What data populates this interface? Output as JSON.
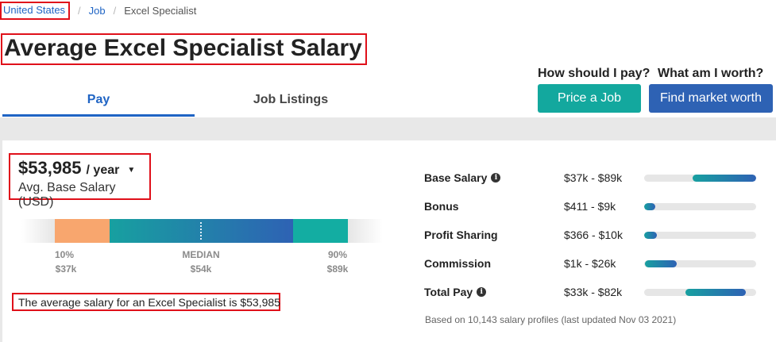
{
  "breadcrumb": {
    "items": [
      "United States",
      "Job",
      "Excel Specialist"
    ],
    "separator": "/"
  },
  "page_title": "Average Excel Specialist Salary",
  "tabs": [
    {
      "label": "Pay",
      "active": true
    },
    {
      "label": "Job Listings",
      "active": false
    }
  ],
  "cta": {
    "pay_question": "How should I pay?",
    "pay_button": "Price a Job",
    "worth_question": "What am I worth?",
    "worth_button": "Find market worth"
  },
  "salary": {
    "amount": "$53,985",
    "period": "/ year",
    "caret": "▼",
    "caption": "Avg. Base Salary (USD)"
  },
  "range": {
    "low_pct": "10%",
    "low_val": "$37k",
    "median_label": "MEDIAN",
    "median_val": "$54k",
    "high_pct": "90%",
    "high_val": "$89k"
  },
  "note": "The average salary for an Excel Specialist is $53,985",
  "pay_rows": [
    {
      "label": "Base Salary",
      "info": true,
      "range": "$37k - $89k",
      "bar_start": 0.43,
      "bar_end": 1.0
    },
    {
      "label": "Bonus",
      "info": false,
      "range": "$411 - $9k",
      "bar_start": 0.0,
      "bar_end": 0.1
    },
    {
      "label": "Profit Sharing",
      "info": false,
      "range": "$366 - $10k",
      "bar_start": 0.0,
      "bar_end": 0.11
    },
    {
      "label": "Commission",
      "info": false,
      "range": "$1k - $26k",
      "bar_start": 0.01,
      "bar_end": 0.29
    },
    {
      "label": "Total Pay",
      "info": true,
      "range": "$33k - $82k",
      "bar_start": 0.37,
      "bar_end": 0.91
    }
  ],
  "footnote": "Based on 10,143 salary profiles (last updated Nov 03 2021)",
  "colors": {
    "link": "#1f64c4",
    "teal": "#13a89e",
    "blue": "#2e62b4",
    "highlight": "#e0101a",
    "orange": "#f8a66e"
  }
}
